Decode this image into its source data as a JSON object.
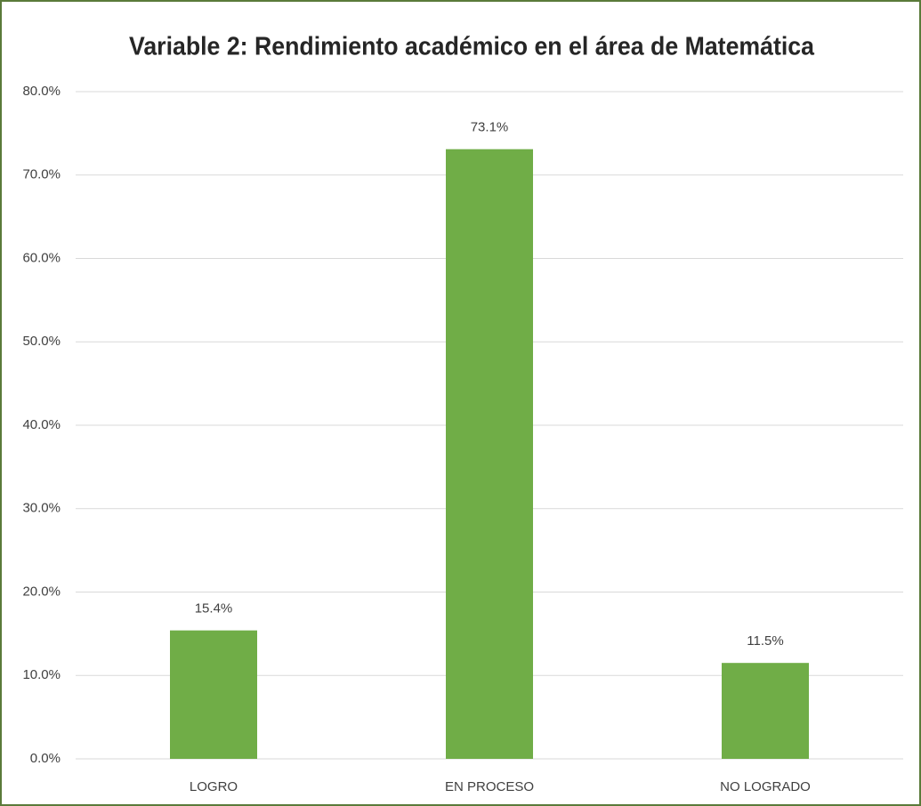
{
  "chart_data": {
    "type": "bar",
    "title": "Variable 2: Rendimiento académico en el área de Matemática",
    "categories": [
      "LOGRO",
      "EN PROCESO",
      "NO LOGRADO"
    ],
    "values": [
      15.4,
      73.1,
      11.5
    ],
    "value_labels": [
      "15.4%",
      "73.1%",
      "11.5%"
    ],
    "color": "#70ad47",
    "ylim": [
      0,
      80
    ],
    "yticks": [
      {
        "value": 0,
        "label": "0.0%"
      },
      {
        "value": 10,
        "label": "10.0%"
      },
      {
        "value": 20,
        "label": "20.0%"
      },
      {
        "value": 30,
        "label": "30.0%"
      },
      {
        "value": 40,
        "label": "40.0%"
      },
      {
        "value": 50,
        "label": "50.0%"
      },
      {
        "value": 60,
        "label": "60.0%"
      },
      {
        "value": 70,
        "label": "70.0%"
      },
      {
        "value": 80,
        "label": "80.0%"
      }
    ],
    "grid": true
  }
}
